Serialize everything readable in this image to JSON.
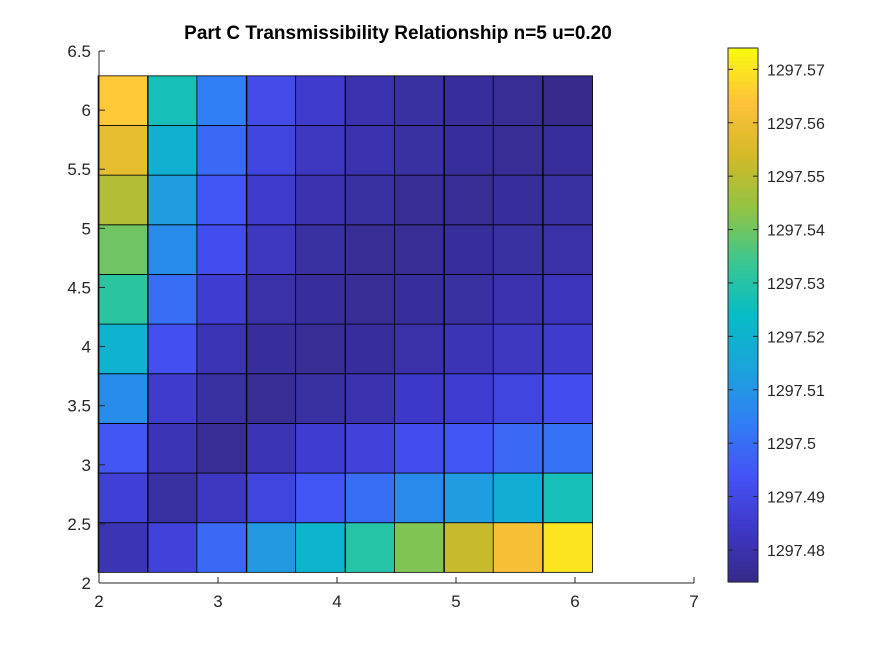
{
  "chart_data": {
    "type": "heatmap",
    "title": "Part C Transmissibility Relationship n=5 u=0.20",
    "xlabel": "",
    "ylabel": "",
    "xlim": [
      2,
      7
    ],
    "ylim": [
      2,
      6.5
    ],
    "x_ticks": [
      2,
      3,
      4,
      5,
      6,
      7
    ],
    "y_ticks": [
      2,
      2.5,
      3,
      3.5,
      4,
      4.5,
      5,
      5.5,
      6,
      6.5
    ],
    "x_centers": [
      2.2,
      2.62,
      3.03,
      3.45,
      3.86,
      4.28,
      4.69,
      5.11,
      5.52,
      5.94
    ],
    "y_centers": [
      2.3,
      2.72,
      3.14,
      3.56,
      3.98,
      4.4,
      4.82,
      5.24,
      5.66,
      6.08
    ],
    "cell_width": 0.415,
    "cell_height": 0.42,
    "values": [
      [
        1297.481,
        1297.488,
        1297.499,
        1297.511,
        1297.521,
        1297.53,
        1297.542,
        1297.552,
        1297.562,
        1297.57
      ],
      [
        1297.487,
        1297.478,
        1297.483,
        1297.489,
        1297.495,
        1297.5,
        1297.507,
        1297.512,
        1297.518,
        1297.527
      ],
      [
        1297.495,
        1297.481,
        1297.476,
        1297.481,
        1297.486,
        1297.488,
        1297.492,
        1297.495,
        1297.499,
        1297.501
      ],
      [
        1297.508,
        1297.485,
        1297.478,
        1297.476,
        1297.478,
        1297.48,
        1297.484,
        1297.486,
        1297.489,
        1297.492
      ],
      [
        1297.52,
        1297.493,
        1297.481,
        1297.477,
        1297.476,
        1297.477,
        1297.479,
        1297.481,
        1297.483,
        1297.485
      ],
      [
        1297.531,
        1297.5,
        1297.486,
        1297.479,
        1297.477,
        1297.476,
        1297.477,
        1297.478,
        1297.48,
        1297.482
      ],
      [
        1297.54,
        1297.508,
        1297.492,
        1297.483,
        1297.478,
        1297.476,
        1297.476,
        1297.477,
        1297.478,
        1297.479
      ],
      [
        1297.549,
        1297.512,
        1297.495,
        1297.485,
        1297.48,
        1297.478,
        1297.476,
        1297.476,
        1297.477,
        1297.478
      ],
      [
        1297.558,
        1297.519,
        1297.499,
        1297.489,
        1297.483,
        1297.48,
        1297.478,
        1297.477,
        1297.476,
        1297.477
      ],
      [
        1297.565,
        1297.527,
        1297.504,
        1297.491,
        1297.485,
        1297.48,
        1297.478,
        1297.477,
        1297.476,
        1297.475
      ]
    ],
    "colorbar": {
      "min": 1297.474,
      "max": 1297.574,
      "ticks": [
        1297.48,
        1297.49,
        1297.5,
        1297.51,
        1297.52,
        1297.53,
        1297.54,
        1297.55,
        1297.56,
        1297.57
      ],
      "tick_labels": [
        "1297.48",
        "1297.49",
        "1297.5",
        "1297.51",
        "1297.52",
        "1297.53",
        "1297.54",
        "1297.55",
        "1297.56",
        "1297.57"
      ],
      "colormap": "parula"
    },
    "grid": false,
    "legend": "none"
  },
  "colors": {
    "axis": "#262626",
    "cell_edge": "#000000",
    "background": "#ffffff"
  }
}
